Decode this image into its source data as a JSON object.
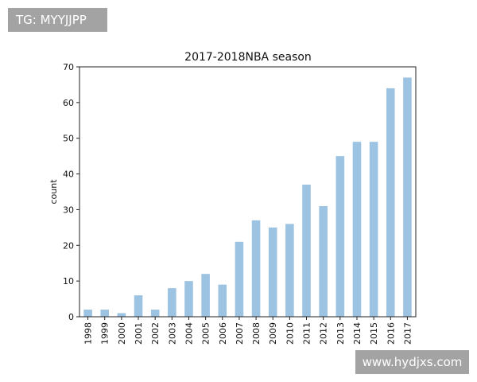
{
  "watermarks": {
    "top_left": "TG: MYYJJPP",
    "bottom_right": "www.hydjxs.com"
  },
  "chart_data": {
    "type": "bar",
    "title": "2017-2018NBA season",
    "xlabel": "",
    "ylabel": "count",
    "categories": [
      "1998",
      "1999",
      "2000",
      "2001",
      "2002",
      "2003",
      "2004",
      "2005",
      "2006",
      "2007",
      "2008",
      "2009",
      "2010",
      "2011",
      "2012",
      "2013",
      "2014",
      "2015",
      "2016",
      "2017"
    ],
    "values": [
      2,
      2,
      1,
      6,
      2,
      8,
      10,
      12,
      9,
      21,
      27,
      25,
      26,
      37,
      31,
      45,
      49,
      49,
      64,
      67
    ],
    "ylim": [
      0,
      70
    ],
    "yticks": [
      0,
      10,
      20,
      30,
      40,
      50,
      60,
      70
    ],
    "grid": false,
    "bar_color": "#9dc3e2"
  }
}
